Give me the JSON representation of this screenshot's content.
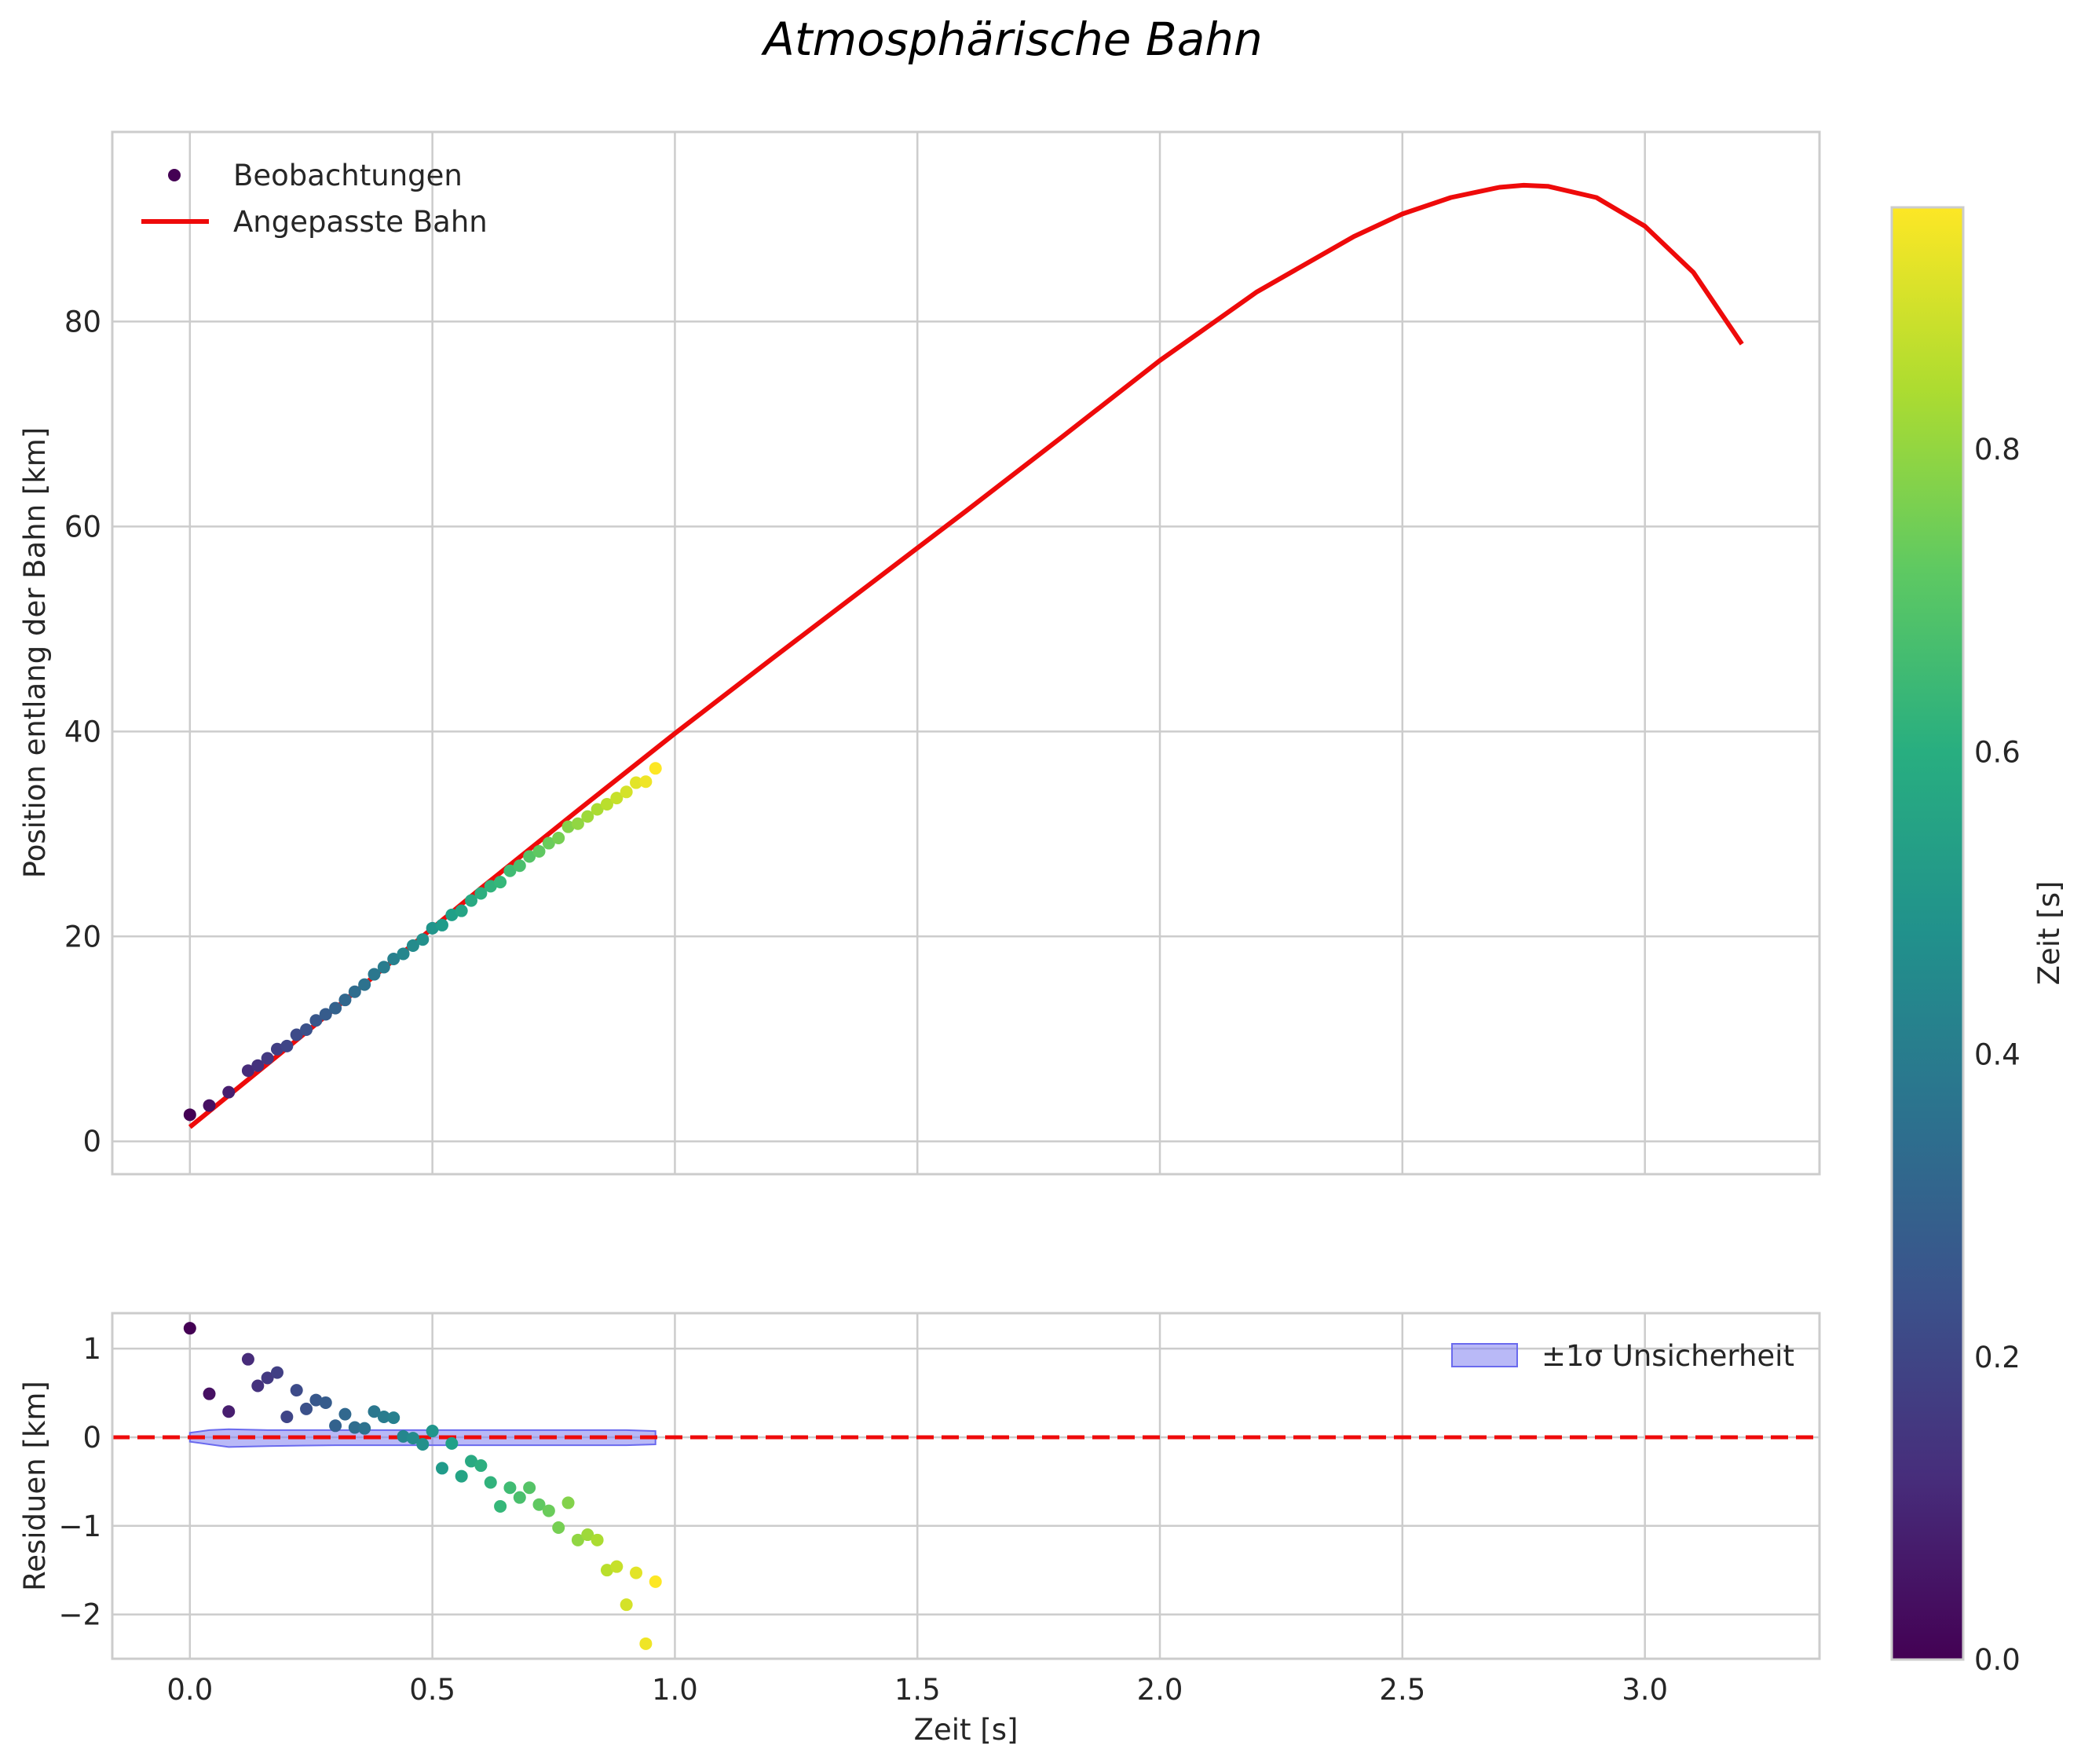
{
  "chart_data": [
    {
      "type": "scatter",
      "panel": "main",
      "title": "Atmosphärische Bahn",
      "xlabel": "",
      "ylabel": "Position entlang der Bahn [km]",
      "xlim": [
        -0.16,
        3.36
      ],
      "ylim": [
        -3.2,
        98.5
      ],
      "xticks": [
        0.0,
        0.5,
        1.0,
        1.5,
        2.0,
        2.5,
        3.0
      ],
      "yticks": [
        0,
        20,
        40,
        60,
        80
      ],
      "ytick_labels": [
        "0",
        "20",
        "40",
        "60",
        "80"
      ],
      "grid": true,
      "legend": {
        "position": "top-left",
        "entries": [
          "Beobachtungen",
          "Angepasste Bahn"
        ]
      },
      "series": [
        {
          "name": "Beobachtungen",
          "kind": "scatter",
          "colormap": "viridis",
          "x": [
            0.0,
            0.04,
            0.08,
            0.12,
            0.14,
            0.16,
            0.18,
            0.2,
            0.22,
            0.24,
            0.26,
            0.28,
            0.3,
            0.32,
            0.34,
            0.36,
            0.38,
            0.4,
            0.42,
            0.44,
            0.46,
            0.48,
            0.5,
            0.52,
            0.54,
            0.56,
            0.58,
            0.6,
            0.62,
            0.64,
            0.66,
            0.68,
            0.7,
            0.72,
            0.74,
            0.76,
            0.78,
            0.8,
            0.82,
            0.84,
            0.86,
            0.88,
            0.9,
            0.92,
            0.94,
            0.96
          ],
          "y": [
            2.6,
            3.5,
            4.8,
            6.9,
            7.4,
            8.1,
            9.0,
            9.3,
            10.4,
            10.9,
            11.8,
            12.4,
            13.0,
            13.8,
            14.6,
            15.3,
            16.3,
            17.0,
            17.8,
            18.3,
            19.1,
            19.7,
            20.8,
            21.1,
            22.1,
            22.5,
            23.5,
            24.2,
            24.9,
            25.3,
            26.4,
            26.9,
            27.8,
            28.3,
            29.1,
            29.6,
            30.7,
            31.0,
            31.7,
            32.4,
            32.9,
            33.5,
            34.1,
            35.0,
            35.1,
            36.4
          ],
          "c": [
            0.0,
            0.04,
            0.08,
            0.12,
            0.14,
            0.16,
            0.18,
            0.2,
            0.22,
            0.24,
            0.26,
            0.28,
            0.3,
            0.32,
            0.34,
            0.36,
            0.38,
            0.4,
            0.42,
            0.44,
            0.46,
            0.48,
            0.5,
            0.52,
            0.54,
            0.56,
            0.58,
            0.6,
            0.62,
            0.64,
            0.66,
            0.68,
            0.7,
            0.72,
            0.74,
            0.76,
            0.78,
            0.8,
            0.82,
            0.84,
            0.86,
            0.88,
            0.9,
            0.92,
            0.94,
            0.96
          ]
        },
        {
          "name": "Angepasste Bahn",
          "kind": "line",
          "color": "#ee0a0a",
          "x": [
            0.0,
            0.2,
            0.4,
            0.6,
            0.8,
            1.0,
            1.2,
            1.4,
            1.6,
            1.8,
            2.0,
            2.2,
            2.4,
            2.5,
            2.6,
            2.7,
            2.75,
            2.8,
            2.9,
            3.0,
            3.1,
            3.2
          ],
          "y": [
            1.4,
            9.1,
            16.9,
            24.7,
            32.3,
            39.8,
            47.1,
            54.3,
            61.5,
            68.8,
            76.2,
            82.9,
            88.3,
            90.5,
            92.1,
            93.1,
            93.3,
            93.2,
            92.1,
            89.3,
            84.8,
            77.8
          ]
        }
      ]
    },
    {
      "type": "scatter",
      "panel": "residuals",
      "xlabel": "Zeit [s]",
      "ylabel": "Residuen [km]",
      "xlim": [
        -0.16,
        3.36
      ],
      "ylim": [
        -2.5,
        1.4
      ],
      "xticks": [
        0.0,
        0.5,
        1.0,
        1.5,
        2.0,
        2.5,
        3.0
      ],
      "xtick_labels": [
        "0.0",
        "0.5",
        "1.0",
        "1.5",
        "2.0",
        "2.5",
        "3.0"
      ],
      "yticks": [
        -2,
        -1,
        0,
        1
      ],
      "ytick_labels": [
        "−2",
        "−1",
        "0",
        "1"
      ],
      "grid": true,
      "legend": {
        "position": "top-right",
        "entries": [
          "±1σ Unsicherheit"
        ]
      },
      "zero_line": {
        "y": 0,
        "color": "#ee0a0a",
        "style": "dashed"
      },
      "band": {
        "name": "±1σ Unsicherheit",
        "color": "#8080f0",
        "x": [
          0.0,
          0.04,
          0.08,
          0.16,
          0.3,
          0.5,
          0.7,
          0.9,
          0.96
        ],
        "upper": [
          0.05,
          0.08,
          0.09,
          0.08,
          0.08,
          0.08,
          0.08,
          0.08,
          0.07
        ],
        "lower": [
          -0.05,
          -0.08,
          -0.11,
          -0.1,
          -0.09,
          -0.09,
          -0.09,
          -0.09,
          -0.08
        ]
      },
      "series": [
        {
          "name": "Residuen",
          "kind": "scatter",
          "colormap": "viridis",
          "x": [
            0.0,
            0.04,
            0.08,
            0.12,
            0.14,
            0.16,
            0.18,
            0.2,
            0.22,
            0.24,
            0.26,
            0.28,
            0.3,
            0.32,
            0.34,
            0.36,
            0.38,
            0.4,
            0.42,
            0.44,
            0.46,
            0.48,
            0.5,
            0.52,
            0.54,
            0.56,
            0.58,
            0.6,
            0.62,
            0.64,
            0.66,
            0.68,
            0.7,
            0.72,
            0.74,
            0.76,
            0.78,
            0.8,
            0.82,
            0.84,
            0.86,
            0.88,
            0.9,
            0.92,
            0.94,
            0.96
          ],
          "y": [
            1.23,
            0.49,
            0.29,
            0.88,
            0.58,
            0.67,
            0.73,
            0.23,
            0.53,
            0.32,
            0.42,
            0.39,
            0.13,
            0.26,
            0.11,
            0.1,
            0.29,
            0.23,
            0.22,
            0.01,
            -0.01,
            -0.08,
            0.07,
            -0.35,
            -0.07,
            -0.44,
            -0.27,
            -0.32,
            -0.51,
            -0.78,
            -0.57,
            -0.68,
            -0.57,
            -0.76,
            -0.83,
            -1.02,
            -0.74,
            -1.16,
            -1.1,
            -1.16,
            -1.5,
            -1.46,
            -1.89,
            -1.53,
            -2.33,
            -1.63
          ],
          "c": [
            0.0,
            0.04,
            0.08,
            0.12,
            0.14,
            0.16,
            0.18,
            0.2,
            0.22,
            0.24,
            0.26,
            0.28,
            0.3,
            0.32,
            0.34,
            0.36,
            0.38,
            0.4,
            0.42,
            0.44,
            0.46,
            0.48,
            0.5,
            0.52,
            0.54,
            0.56,
            0.58,
            0.6,
            0.62,
            0.64,
            0.66,
            0.68,
            0.7,
            0.72,
            0.74,
            0.76,
            0.78,
            0.8,
            0.82,
            0.84,
            0.86,
            0.88,
            0.9,
            0.92,
            0.94,
            0.96
          ]
        }
      ]
    },
    {
      "type": "colorbar",
      "label": "Zeit [s]",
      "colormap": "viridis",
      "range": [
        0.0,
        0.96
      ],
      "ticks": [
        0.0,
        0.2,
        0.4,
        0.6,
        0.8
      ],
      "tick_labels": [
        "0.0",
        "0.2",
        "0.4",
        "0.6",
        "0.8"
      ]
    }
  ]
}
